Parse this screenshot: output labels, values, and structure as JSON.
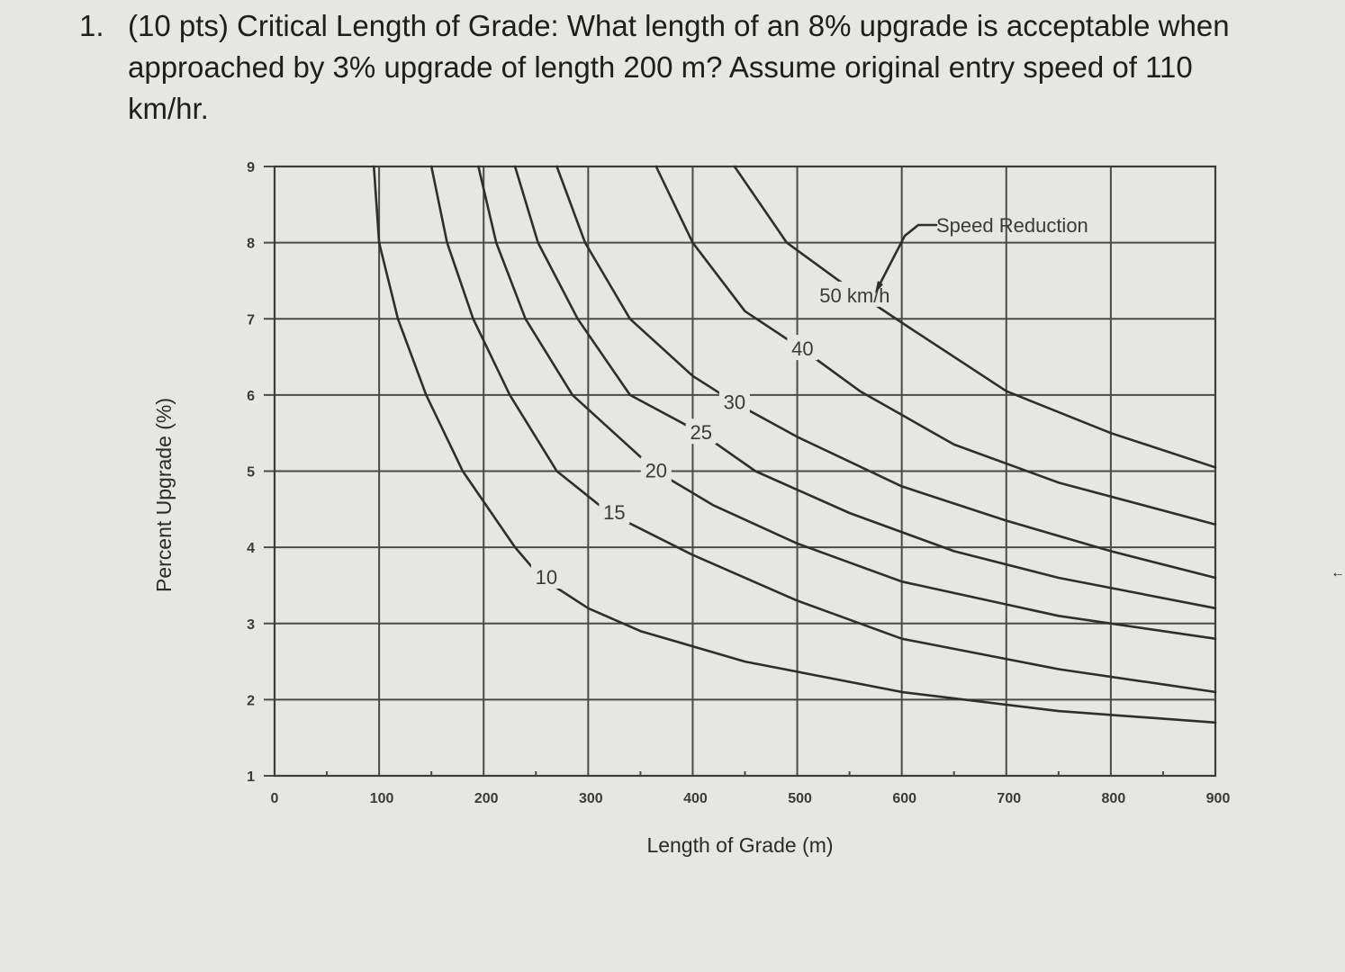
{
  "question": {
    "number": "1.",
    "text": "(10 pts) Critical Length of Grade: What length of an 8% upgrade is acceptable when approached by 3% upgrade of length 200 m? Assume original entry speed of 110 km/hr."
  },
  "edge_icon": "←",
  "chart_data": {
    "type": "line",
    "title": "",
    "xlabel": "Length of Grade (m)",
    "ylabel": "Percent Upgrade (%)",
    "xlim": [
      0,
      900
    ],
    "ylim": [
      1,
      9
    ],
    "x_ticks": [
      0,
      100,
      200,
      300,
      400,
      500,
      600,
      700,
      800,
      900
    ],
    "y_ticks": [
      1,
      2,
      3,
      4,
      5,
      6,
      7,
      8,
      9
    ],
    "grid": true,
    "legend": "inline curve labels",
    "annotation": "Speed Reduction",
    "series": [
      {
        "name": "10",
        "label": "10",
        "label_at": [
          260,
          3.6
        ],
        "points": [
          [
            95,
            9
          ],
          [
            100,
            8
          ],
          [
            118,
            7
          ],
          [
            145,
            6
          ],
          [
            180,
            5
          ],
          [
            230,
            4
          ],
          [
            255,
            3.6
          ],
          [
            300,
            3.2
          ],
          [
            350,
            2.9
          ],
          [
            450,
            2.5
          ],
          [
            600,
            2.1
          ],
          [
            750,
            1.85
          ],
          [
            900,
            1.7
          ]
        ]
      },
      {
        "name": "15",
        "label": "15",
        "label_at": [
          325,
          4.45
        ],
        "points": [
          [
            150,
            9
          ],
          [
            165,
            8
          ],
          [
            190,
            7
          ],
          [
            225,
            6
          ],
          [
            270,
            5
          ],
          [
            320,
            4.45
          ],
          [
            400,
            3.9
          ],
          [
            500,
            3.3
          ],
          [
            600,
            2.8
          ],
          [
            750,
            2.4
          ],
          [
            900,
            2.1
          ]
        ]
      },
      {
        "name": "20",
        "label": "20",
        "label_at": [
          365,
          5.0
        ],
        "points": [
          [
            195,
            9
          ],
          [
            212,
            8
          ],
          [
            240,
            7
          ],
          [
            285,
            6
          ],
          [
            365,
            5
          ],
          [
            420,
            4.55
          ],
          [
            500,
            4.05
          ],
          [
            600,
            3.55
          ],
          [
            750,
            3.1
          ],
          [
            900,
            2.8
          ]
        ]
      },
      {
        "name": "25",
        "label": "25",
        "label_at": [
          408,
          5.5
        ],
        "points": [
          [
            230,
            9
          ],
          [
            252,
            8
          ],
          [
            290,
            7
          ],
          [
            340,
            6
          ],
          [
            408,
            5.5
          ],
          [
            460,
            5.0
          ],
          [
            550,
            4.45
          ],
          [
            650,
            3.95
          ],
          [
            750,
            3.6
          ],
          [
            900,
            3.2
          ]
        ]
      },
      {
        "name": "30",
        "label": "30",
        "label_at": [
          440,
          5.9
        ],
        "points": [
          [
            270,
            9
          ],
          [
            297,
            8
          ],
          [
            340,
            7
          ],
          [
            400,
            6.25
          ],
          [
            440,
            5.9
          ],
          [
            500,
            5.45
          ],
          [
            600,
            4.8
          ],
          [
            700,
            4.35
          ],
          [
            800,
            3.95
          ],
          [
            900,
            3.6
          ]
        ]
      },
      {
        "name": "40",
        "label": "40",
        "label_at": [
          505,
          6.6
        ],
        "points": [
          [
            365,
            9
          ],
          [
            400,
            8
          ],
          [
            450,
            7.1
          ],
          [
            505,
            6.6
          ],
          [
            560,
            6.05
          ],
          [
            650,
            5.35
          ],
          [
            750,
            4.85
          ],
          [
            900,
            4.3
          ]
        ]
      },
      {
        "name": "50 km/h",
        "label": "50 km/h",
        "label_at": [
          555,
          7.3
        ],
        "points": [
          [
            440,
            9
          ],
          [
            490,
            8
          ],
          [
            540,
            7.5
          ],
          [
            600,
            6.95
          ],
          [
            700,
            6.05
          ],
          [
            800,
            5.5
          ],
          [
            900,
            5.05
          ]
        ]
      }
    ]
  }
}
